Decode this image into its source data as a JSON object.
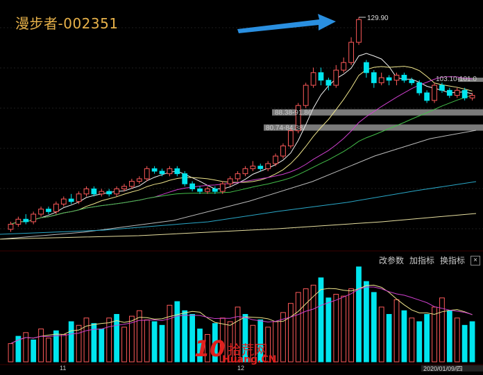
{
  "header": {
    "title": "漫步者-002351"
  },
  "annotations": {
    "high_label": "129.90",
    "range_1": "103.10-101.0",
    "range_2": "88.38-91.86",
    "range_3": "80.74-84.38"
  },
  "toolbar": {
    "change_params": "改参数",
    "add_indicator": "加指标",
    "switch_indicator": "换指标",
    "close": "×"
  },
  "xaxis": {
    "labels": [
      "11",
      "12"
    ],
    "date_label": "2020/01/09/四"
  },
  "watermark": {
    "ten": "10",
    "zh": "拾荒网",
    "en": "Huang.CN"
  },
  "colors": {
    "up": "#ff5a5a",
    "down": "#00e5ee",
    "bg": "#000000",
    "title": "#e8b24a",
    "arrow": "#2a8fe0"
  },
  "chart_data": {
    "type": "candlestick",
    "note_series": [
      "MA5",
      "MA10",
      "MA20",
      "MA30",
      "MA60",
      "MA120",
      "MA250"
    ],
    "candles": [
      {
        "o": 46,
        "c": 48,
        "h": 49,
        "l": 45
      },
      {
        "o": 48,
        "c": 50,
        "h": 51,
        "l": 47
      },
      {
        "o": 50,
        "c": 49,
        "h": 52,
        "l": 48
      },
      {
        "o": 49,
        "c": 52,
        "h": 53,
        "l": 48
      },
      {
        "o": 52,
        "c": 54,
        "h": 55,
        "l": 51
      },
      {
        "o": 54,
        "c": 53,
        "h": 55,
        "l": 52
      },
      {
        "o": 53,
        "c": 56,
        "h": 57,
        "l": 52
      },
      {
        "o": 56,
        "c": 58,
        "h": 59,
        "l": 55
      },
      {
        "o": 58,
        "c": 57,
        "h": 60,
        "l": 56
      },
      {
        "o": 57,
        "c": 60,
        "h": 61,
        "l": 56
      },
      {
        "o": 60,
        "c": 62,
        "h": 63,
        "l": 59
      },
      {
        "o": 62,
        "c": 60,
        "h": 63,
        "l": 59
      },
      {
        "o": 60,
        "c": 61,
        "h": 62,
        "l": 59
      },
      {
        "o": 61,
        "c": 60,
        "h": 62,
        "l": 59
      },
      {
        "o": 60,
        "c": 62,
        "h": 63,
        "l": 59
      },
      {
        "o": 62,
        "c": 63,
        "h": 64,
        "l": 61
      },
      {
        "o": 63,
        "c": 65,
        "h": 66,
        "l": 62
      },
      {
        "o": 65,
        "c": 66,
        "h": 67,
        "l": 64
      },
      {
        "o": 66,
        "c": 70,
        "h": 71,
        "l": 65
      },
      {
        "o": 70,
        "c": 69,
        "h": 71,
        "l": 68
      },
      {
        "o": 69,
        "c": 68,
        "h": 70,
        "l": 67
      },
      {
        "o": 68,
        "c": 70,
        "h": 71,
        "l": 67
      },
      {
        "o": 70,
        "c": 68,
        "h": 71,
        "l": 67
      },
      {
        "o": 68,
        "c": 64,
        "h": 69,
        "l": 63
      },
      {
        "o": 64,
        "c": 62,
        "h": 65,
        "l": 61
      },
      {
        "o": 62,
        "c": 61,
        "h": 63,
        "l": 60
      },
      {
        "o": 61,
        "c": 62,
        "h": 63,
        "l": 60
      },
      {
        "o": 62,
        "c": 61,
        "h": 63,
        "l": 60
      },
      {
        "o": 61,
        "c": 64,
        "h": 65,
        "l": 60
      },
      {
        "o": 64,
        "c": 66,
        "h": 67,
        "l": 63
      },
      {
        "o": 66,
        "c": 68,
        "h": 69,
        "l": 65
      },
      {
        "o": 68,
        "c": 70,
        "h": 71,
        "l": 67
      },
      {
        "o": 70,
        "c": 71,
        "h": 73,
        "l": 69
      },
      {
        "o": 71,
        "c": 70,
        "h": 72,
        "l": 69
      },
      {
        "o": 70,
        "c": 72,
        "h": 73,
        "l": 69
      },
      {
        "o": 72,
        "c": 75,
        "h": 76,
        "l": 71
      },
      {
        "o": 75,
        "c": 79,
        "h": 80,
        "l": 74
      },
      {
        "o": 79,
        "c": 85,
        "h": 86,
        "l": 78
      },
      {
        "o": 85,
        "c": 95,
        "h": 96,
        "l": 84
      },
      {
        "o": 95,
        "c": 103,
        "h": 104,
        "l": 94
      },
      {
        "o": 103,
        "c": 108,
        "h": 110,
        "l": 102
      },
      {
        "o": 108,
        "c": 105,
        "h": 110,
        "l": 103
      },
      {
        "o": 105,
        "c": 103,
        "h": 106,
        "l": 101
      },
      {
        "o": 103,
        "c": 109,
        "h": 111,
        "l": 102
      },
      {
        "o": 109,
        "c": 112,
        "h": 114,
        "l": 108
      },
      {
        "o": 112,
        "c": 120,
        "h": 122,
        "l": 111
      },
      {
        "o": 120,
        "c": 129,
        "h": 129.9,
        "l": 119
      },
      {
        "o": 112,
        "c": 108,
        "h": 113,
        "l": 106
      },
      {
        "o": 108,
        "c": 104,
        "h": 109,
        "l": 102
      },
      {
        "o": 104,
        "c": 106,
        "h": 108,
        "l": 103
      },
      {
        "o": 106,
        "c": 105,
        "h": 107,
        "l": 103
      },
      {
        "o": 105,
        "c": 107,
        "h": 108,
        "l": 103
      },
      {
        "o": 107,
        "c": 105,
        "h": 108,
        "l": 104
      },
      {
        "o": 105,
        "c": 104,
        "h": 106,
        "l": 103
      },
      {
        "o": 104,
        "c": 100,
        "h": 105,
        "l": 99
      },
      {
        "o": 100,
        "c": 97,
        "h": 101,
        "l": 96
      },
      {
        "o": 97,
        "c": 103,
        "h": 104,
        "l": 96
      },
      {
        "o": 103,
        "c": 101,
        "h": 104,
        "l": 100
      },
      {
        "o": 101,
        "c": 99,
        "h": 102,
        "l": 98
      },
      {
        "o": 99,
        "c": 101,
        "h": 102,
        "l": 98
      },
      {
        "o": 101,
        "c": 98,
        "h": 102,
        "l": 97
      },
      {
        "o": 98,
        "c": 99,
        "h": 100,
        "l": 97
      }
    ],
    "volumes": [
      10,
      14,
      16,
      12,
      18,
      13,
      17,
      15,
      22,
      20,
      24,
      21,
      18,
      24,
      26,
      19,
      25,
      28,
      23,
      22,
      20,
      31,
      33,
      28,
      26,
      18,
      15,
      21,
      24,
      22,
      30,
      26,
      20,
      23,
      19,
      22,
      27,
      32,
      38,
      40,
      42,
      46,
      35,
      37,
      36,
      40,
      52,
      44,
      38,
      30,
      26,
      34,
      28,
      24,
      22,
      26,
      30,
      35,
      28,
      24,
      20,
      22
    ],
    "volume_dir": [
      "u",
      "d",
      "u",
      "d",
      "u",
      "u",
      "d",
      "u",
      "d",
      "u",
      "u",
      "d",
      "d",
      "u",
      "d",
      "u",
      "u",
      "u",
      "u",
      "d",
      "d",
      "u",
      "d",
      "d",
      "d",
      "d",
      "u",
      "d",
      "u",
      "u",
      "u",
      "d",
      "u",
      "d",
      "u",
      "u",
      "u",
      "u",
      "u",
      "u",
      "u",
      "d",
      "d",
      "u",
      "u",
      "u",
      "d",
      "d",
      "d",
      "u",
      "d",
      "u",
      "d",
      "u",
      "d",
      "d",
      "u",
      "u",
      "d",
      "u",
      "d",
      "d"
    ],
    "price_range": [
      38,
      134
    ]
  }
}
